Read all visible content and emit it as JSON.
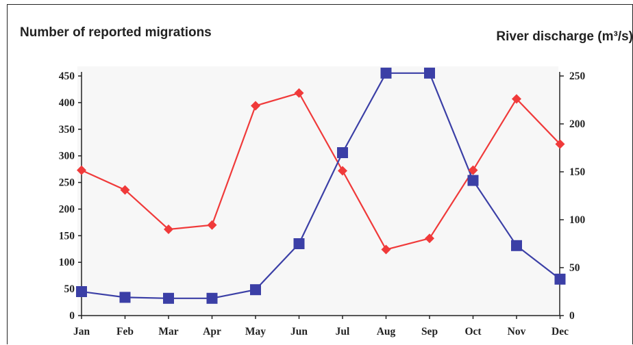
{
  "chart_data": {
    "type": "line",
    "title_left": "Number of reported migrations",
    "title_right": "River discharge (m³/s)",
    "categories": [
      "Jan",
      "Feb",
      "Mar",
      "Apr",
      "May",
      "Jun",
      "Jul",
      "Aug",
      "Sep",
      "Oct",
      "Nov",
      "Dec"
    ],
    "y_left": {
      "min": 0,
      "max": 450,
      "step": 50,
      "ticks": [
        "0",
        "50",
        "100",
        "150",
        "200",
        "250",
        "300",
        "350",
        "400",
        "450"
      ]
    },
    "y_right": {
      "min": 0,
      "max": 250,
      "step": 50,
      "ticks": [
        "0",
        "50",
        "100",
        "150",
        "200",
        "250"
      ]
    },
    "series": [
      {
        "key": "migrations",
        "axis": "left",
        "color": "#f03a3a",
        "marker": "diamond",
        "values": [
          273,
          236,
          162,
          170,
          394,
          418,
          272,
          124,
          145,
          273,
          407,
          322
        ]
      },
      {
        "key": "discharge",
        "axis": "right",
        "color": "#3b3fa6",
        "marker": "square",
        "values": [
          25,
          19,
          18,
          18,
          27,
          75,
          170,
          253,
          253,
          141,
          73,
          38
        ]
      }
    ],
    "grid": false,
    "background": "#f7f7f7"
  }
}
